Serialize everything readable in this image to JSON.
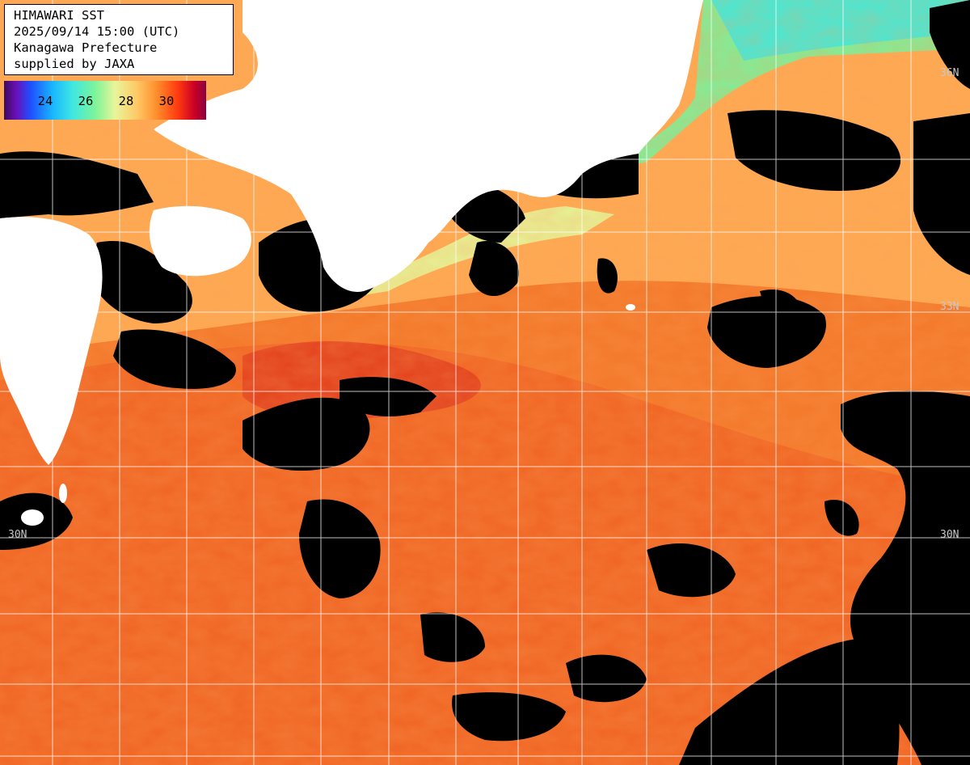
{
  "info": {
    "line1": "HIMAWARI SST",
    "line2": "2025/09/14 15:00 (UTC)",
    "line3": "Kanagawa Prefecture",
    "line4": "supplied by JAXA"
  },
  "colorbar": {
    "ticks": [
      "24",
      "26",
      "28",
      "30"
    ],
    "tick_values": [
      24,
      26,
      28,
      30
    ]
  },
  "lat_labels": {
    "n36_right": "36N",
    "n33_right": "33N",
    "n30_left": "30N",
    "n30_right": "30N"
  },
  "colors": {
    "land": "#ffffff",
    "cloud": "#000000",
    "grid": "#ffffff",
    "warm_sea": "#f5742a",
    "hot_sea": "#e8401e",
    "coastal_sea": "#ffb35a",
    "cool_sea": "#7cf09a"
  }
}
